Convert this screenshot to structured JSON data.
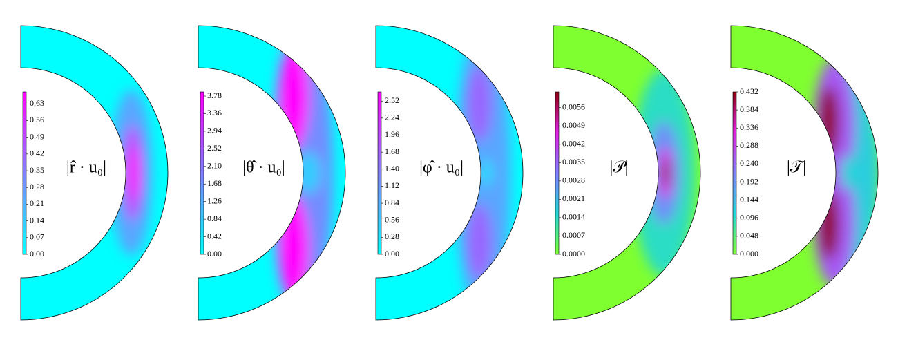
{
  "chart_data": [
    {
      "type": "field",
      "label": "|r̂ · u₀|",
      "colors": [
        "#00ffff",
        "#8080ff",
        "#ff00ff"
      ],
      "zlim": [
        0,
        0.68
      ],
      "zticks": [
        {
          "value": 0,
          "label": "0.00"
        },
        0.07,
        0.14,
        0.21,
        0.28,
        0.35,
        0.42,
        0.49,
        0.56,
        0.63
      ]
    },
    {
      "type": "field",
      "label": "|θ̂ · u₀|",
      "colors": [
        "#00ffff",
        "#8080ff",
        "#ff00ff"
      ],
      "zlim": [
        0,
        3.88
      ],
      "zticks": [
        {
          "value": 0,
          "label": "0.00"
        },
        0.42,
        0.84,
        1.26,
        1.68,
        {
          "value": 2.1,
          "label": "2.10"
        },
        2.52,
        2.94,
        3.36,
        3.78
      ]
    },
    {
      "type": "field",
      "label": "|φ̂ · u₀|",
      "colors": [
        "#00ffff",
        "#8080ff",
        "#ff00ff"
      ],
      "zlim": [
        0,
        2.67
      ],
      "zticks": [
        {
          "value": 0,
          "label": "0.00"
        },
        0.28,
        0.56,
        0.84,
        1.12,
        {
          "value": 1.4,
          "label": "1.40"
        },
        1.68,
        1.96,
        2.24,
        2.52
      ]
    },
    {
      "type": "field",
      "label": "|𝒫|",
      "colors": [
        "#80ff30",
        "#20d8d8",
        "#8080ff",
        "#e020e0",
        "#900010"
      ],
      "zlim": [
        0,
        0.0062
      ],
      "zticks": [
        {
          "value": 0,
          "label": "0.0000"
        },
        0.0007,
        0.0014,
        0.0021,
        0.0028,
        0.0035,
        0.0042,
        0.0049,
        0.0056
      ]
    },
    {
      "type": "field",
      "label": "|𝒯|",
      "colors": [
        "#80ff30",
        "#20d8d8",
        "#8080ff",
        "#e020e0",
        "#900010"
      ],
      "zlim": [
        0,
        0.432
      ],
      "zticks": [
        {
          "value": 0,
          "label": "0.000"
        },
        0.048,
        0.096,
        0.144,
        0.192,
        {
          "value": 0.24,
          "label": "0.240"
        },
        0.288,
        0.336,
        0.384,
        0.432
      ]
    }
  ]
}
